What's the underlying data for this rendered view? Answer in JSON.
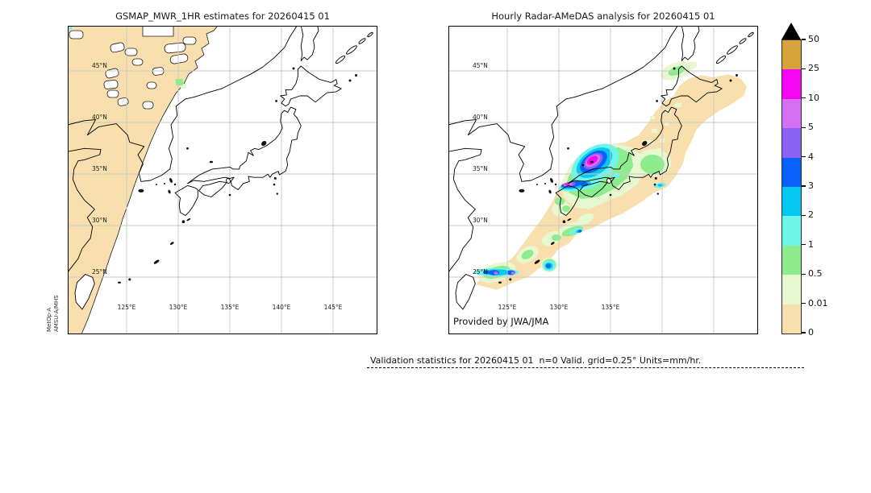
{
  "figure": {
    "left_panel": {
      "title": "GSMAP_MWR_1HR estimates for 20260415 01",
      "instrument": [
        "MetOp-A",
        "AMSU-A/MHS"
      ],
      "lat_tick_labels": [
        "45°N",
        "40°N",
        "35°N",
        "30°N",
        "25°N"
      ],
      "lon_tick_labels": [
        "125°E",
        "130°E",
        "135°E",
        "140°E",
        "145°E"
      ]
    },
    "right_panel": {
      "title": "Hourly Radar-AMeDAS analysis for 20260415 01",
      "credit": "Provided by JWA/JMA",
      "lat_tick_labels": [
        "45°N",
        "40°N",
        "35°N",
        "30°N",
        "25°N"
      ],
      "lon_tick_labels": [
        "125°E",
        "130°E",
        "135°E"
      ]
    },
    "colorbar": {
      "tick_labels": [
        "50",
        "25",
        "10",
        "5",
        "4",
        "3",
        "2",
        "1",
        "0.5",
        "0.01",
        "0"
      ],
      "segment_colors_top_to_bottom": [
        "#D7A33B",
        "#F705F5",
        "#D66FF2",
        "#8A63F2",
        "#0760F8",
        "#04C8F2",
        "#6FF5E8",
        "#8DEC8D",
        "#E7F8D0",
        "#F8DFAD"
      ],
      "overflow_color": "#000000"
    },
    "footer": {
      "validation_text": "Validation statistics for 20260415 01  n=0 Valid. grid=0.25° Units=mm/hr."
    }
  }
}
